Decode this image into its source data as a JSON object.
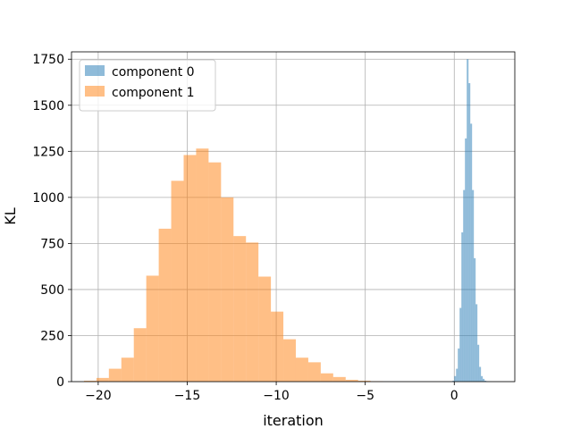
{
  "chart_data": {
    "type": "bar",
    "subtype": "histogram",
    "xlabel": "iteration",
    "ylabel": "KL",
    "xlim": [
      -21.5,
      3.4
    ],
    "ylim": [
      0,
      1790
    ],
    "xticks": [
      -20,
      -15,
      -10,
      -5,
      0
    ],
    "yticks": [
      0,
      250,
      500,
      750,
      1000,
      1250,
      1500,
      1750
    ],
    "grid": true,
    "legend_position": "top-left",
    "series": [
      {
        "name": "component 0",
        "color": "#1f77b4",
        "alpha": 0.5,
        "bin_edges": [
          -0.1,
          0.0,
          0.1,
          0.2,
          0.3,
          0.4,
          0.5,
          0.6,
          0.7,
          0.8,
          0.9,
          1.0,
          1.1,
          1.2,
          1.3,
          1.4,
          1.5,
          1.6,
          1.7,
          1.8,
          1.9,
          2.0,
          2.1,
          2.2
        ],
        "counts": [
          5,
          30,
          70,
          180,
          400,
          810,
          1040,
          1320,
          1750,
          1620,
          1400,
          1040,
          670,
          420,
          200,
          80,
          30,
          15,
          5,
          2,
          1,
          1,
          0
        ]
      },
      {
        "name": "component 1",
        "color": "#ff7f0e",
        "alpha": 0.5,
        "bin_edges": [
          -20.8,
          -20.1,
          -19.4,
          -18.7,
          -18.0,
          -17.3,
          -16.6,
          -15.9,
          -15.2,
          -14.5,
          -13.8,
          -13.1,
          -12.4,
          -11.7,
          -11.0,
          -10.3,
          -9.6,
          -8.9,
          -8.2,
          -7.5,
          -6.8,
          -6.1,
          -5.4,
          -4.7,
          -4.0
        ],
        "counts": [
          5,
          20,
          70,
          130,
          290,
          575,
          830,
          1090,
          1230,
          1265,
          1190,
          1000,
          790,
          755,
          570,
          380,
          230,
          130,
          105,
          45,
          25,
          10,
          5,
          2
        ]
      }
    ]
  }
}
